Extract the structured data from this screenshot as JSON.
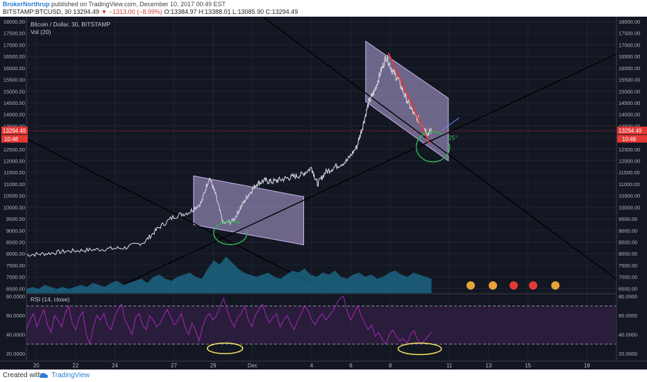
{
  "header": {
    "author": "BrokerNorthrup",
    "published": "published on TradingView.com, December 10, 2017 00:49 EST",
    "symbol": "BITSTAMP:BTCUSD, 30",
    "last": "13294.49",
    "change": "−1313.00 (−8.99%)",
    "ohlc": "O:13384.97 H:13388.01 L:13085.90 C:13294.49"
  },
  "legend": {
    "title": "Bitcoin / Dollar, 30, BITSTAMP",
    "volume": "Vol (20)",
    "rsi": "RSI (14, close)"
  },
  "price_tag": {
    "value": "13294.49",
    "time": "10:48"
  },
  "annotations": {
    "angle": "25°"
  },
  "footer": {
    "created": "Created with",
    "brand": "TradingView"
  },
  "colors": {
    "background": "#131722",
    "candle": "#d0d4dc",
    "channel_fill": "#c8b6f0",
    "red_line": "#e53935",
    "green_mark": "#2ebc4f",
    "rsi_line": "#9c27b0",
    "rsi_fill": "#3a1f4d",
    "volume": "#1e6f8f",
    "yellow_mark": "#f5e663",
    "last_price": "#e53935"
  },
  "chart_data": [
    {
      "type": "line",
      "title": "Bitcoin / Dollar, 30, BITSTAMP",
      "x_tick_labels": [
        "20",
        "22",
        "24",
        "27",
        "29",
        "Dec",
        "4",
        "6",
        "8",
        "11",
        "13",
        "15",
        "18"
      ],
      "x_tick_days": [
        20,
        22,
        24,
        27,
        29,
        31,
        34,
        36,
        38,
        41,
        43,
        45,
        48
      ],
      "x_range_days": [
        19.5,
        49.5
      ],
      "y_tick_labels": [
        "6500.00",
        "7000.00",
        "7500.00",
        "8000.00",
        "8500.00",
        "9000.00",
        "9500.00",
        "10000.00",
        "10500.00",
        "11000.00",
        "11500.00",
        "12000.00",
        "12500.00",
        "13000.00",
        "13500.00",
        "14000.00",
        "14500.00",
        "15000.00",
        "15500.00",
        "16000.00",
        "16500.00",
        "17000.00",
        "17500.00",
        "18000.00"
      ],
      "ylim": [
        6300,
        18150
      ],
      "last_price": 13294.49,
      "series": [
        {
          "x": [
            19.5,
            20.5,
            21.5,
            22.5,
            23.5,
            24.5,
            25.5,
            26.2,
            27,
            27.8,
            28.4,
            28.8,
            29.1,
            29.5,
            30,
            30.4,
            30.8,
            31.2,
            31.6,
            32,
            32.5,
            33,
            33.5,
            34,
            34.3,
            34.7,
            35.2,
            35.8,
            36.3,
            36.6,
            36.9,
            37.2,
            37.5,
            37.8,
            38.1,
            38.4,
            38.8,
            39.2,
            39.6,
            39.9,
            40.1
          ],
          "values": [
            7950,
            8000,
            8100,
            8150,
            8200,
            8250,
            8500,
            9100,
            9600,
            9800,
            10200,
            11300,
            10600,
            9300,
            9400,
            10000,
            10550,
            11000,
            11150,
            11100,
            11200,
            11300,
            11400,
            11700,
            11000,
            11500,
            11750,
            12000,
            12600,
            13500,
            14500,
            15000,
            15800,
            16500,
            15900,
            15500,
            14700,
            14000,
            13600,
            13200,
            13294
          ]
        }
      ],
      "channels": [
        {
          "name": "late-nov",
          "upper": [
            [
              28.0,
              11350
            ],
            [
              33.6,
              10450
            ]
          ],
          "lower": [
            [
              28.0,
              9250
            ],
            [
              33.6,
              8380
            ]
          ]
        },
        {
          "name": "early-dec",
          "upper": [
            [
              36.75,
              17150
            ],
            [
              40.95,
              14700
            ]
          ],
          "lower": [
            [
              36.75,
              14550
            ],
            [
              40.95,
              12000
            ]
          ]
        }
      ],
      "trendlines": [
        [
          [
            19.5,
            12950
          ],
          [
            35.0,
            6300
          ]
        ],
        [
          [
            23.5,
            6300
          ],
          [
            49.5,
            16600
          ]
        ],
        [
          [
            31.6,
            18150
          ],
          [
            49.5,
            6900
          ]
        ]
      ],
      "red_line": [
        [
          37.9,
          16650
        ],
        [
          40.0,
          12750
        ]
      ],
      "blue_line": [
        [
          40.6,
          13300
        ],
        [
          41.5,
          13850
        ]
      ],
      "green_arcs": [
        {
          "cx": 29.85,
          "cy": 8850,
          "rx": 0.85,
          "ry": 500
        },
        {
          "cx": 40.15,
          "cy": 12550,
          "rx": 0.85,
          "ry": 650
        }
      ],
      "angle_label_pos": [
        40.95,
        12900
      ]
    },
    {
      "type": "area",
      "title": "Vol (20)",
      "values": [
        2,
        3,
        2,
        4,
        3,
        2,
        3,
        2,
        3,
        4,
        3,
        5,
        4,
        3,
        5,
        6,
        4,
        5,
        6,
        7,
        5,
        8,
        9,
        7,
        6,
        8,
        9,
        10,
        8,
        7,
        12,
        16,
        14,
        18,
        15,
        12,
        10,
        9,
        8,
        9,
        10,
        8,
        7,
        9,
        11,
        10,
        12,
        9,
        8,
        10,
        9,
        11,
        8,
        7,
        9,
        10,
        8,
        9,
        7,
        8,
        10,
        11,
        9,
        8,
        10,
        9,
        8,
        7
      ]
    },
    {
      "type": "line",
      "title": "RSI (14, close)",
      "y_tick_labels": [
        "20.0000",
        "40.0000",
        "60.0000",
        "80.0000"
      ],
      "ylim": [
        15,
        82
      ],
      "bands": [
        30,
        70
      ],
      "series": [
        {
          "name": "RSI",
          "values": [
            45,
            55,
            62,
            48,
            58,
            66,
            50,
            42,
            60,
            55,
            48,
            62,
            70,
            52,
            45,
            58,
            64,
            40,
            30,
            48,
            60,
            55,
            62,
            50,
            45,
            58,
            66,
            72,
            55,
            48,
            40,
            58,
            62,
            50,
            45,
            60,
            55,
            48,
            52,
            60,
            66,
            58,
            50,
            55,
            62,
            48,
            40,
            52,
            45,
            33,
            48,
            58,
            62,
            55,
            60,
            70,
            78,
            65,
            55,
            48,
            58,
            62,
            70,
            55,
            48,
            60,
            66,
            72,
            60,
            52,
            58,
            62,
            48,
            55,
            60,
            52,
            45,
            55,
            62,
            70,
            65,
            55,
            50,
            58,
            62,
            55,
            60,
            65,
            72,
            78,
            80,
            65,
            55,
            62,
            70,
            60,
            52,
            45,
            50,
            38,
            42,
            35,
            30,
            40,
            45,
            38,
            33,
            36,
            30,
            40,
            44,
            35,
            30,
            34,
            38,
            43
          ]
        }
      ],
      "yellow_marks": [
        {
          "cx": 29.6,
          "cy": 25.5,
          "rx": 0.9,
          "ry": 5.5
        },
        {
          "cx": 39.5,
          "cy": 25.0,
          "rx": 1.1,
          "ry": 6.0
        }
      ]
    }
  ]
}
